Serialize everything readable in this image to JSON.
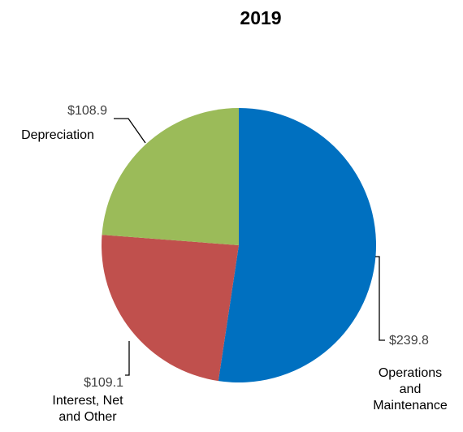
{
  "chart_data": {
    "type": "pie",
    "title": "2019",
    "slices": [
      {
        "name": "Operations and Maintenance",
        "name_lines": [
          "Operations",
          "and",
          "Maintenance"
        ],
        "value": 239.8,
        "value_label": "$239.8",
        "color": "#0070C0"
      },
      {
        "name": "Interest, Net and Other",
        "name_lines": [
          "Interest, Net",
          "and Other"
        ],
        "value": 109.1,
        "value_label": "$109.1",
        "color": "#C0504D"
      },
      {
        "name": "Depreciation",
        "name_lines": [
          "Depreciation"
        ],
        "value": 108.9,
        "value_label": "$108.9",
        "color": "#9BBB59"
      }
    ],
    "start_angle": "12 o'clock",
    "direction": "clockwise",
    "legend": "none"
  }
}
